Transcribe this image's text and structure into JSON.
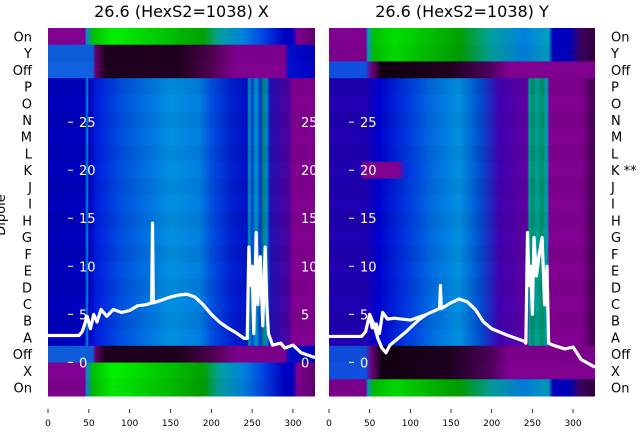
{
  "figure": {
    "ylabel": "Dipole"
  },
  "profiles": {
    "on_L": [
      [
        0,
        "#800090"
      ],
      [
        45,
        "#800090"
      ],
      [
        47,
        "#1080e0"
      ],
      [
        55,
        "#00c000"
      ],
      [
        80,
        "#00f000"
      ],
      [
        150,
        "#00c000"
      ],
      [
        190,
        "#00a000"
      ],
      [
        210,
        "#00a0a0"
      ],
      [
        240,
        "#0080e0"
      ],
      [
        265,
        "#0040e0"
      ],
      [
        290,
        "#0000c0"
      ],
      [
        300,
        "#0000c0"
      ],
      [
        305,
        "#800090"
      ],
      [
        327,
        "#600070"
      ]
    ],
    "dark_L": [
      [
        0,
        "#1060e0"
      ],
      [
        55,
        "#1060e0"
      ],
      [
        58,
        "#700070"
      ],
      [
        70,
        "#200020"
      ],
      [
        160,
        "#200020"
      ],
      [
        200,
        "#500050"
      ],
      [
        230,
        "#800090"
      ],
      [
        290,
        "#800090"
      ],
      [
        295,
        "#0010d0"
      ],
      [
        327,
        "#0000c0"
      ]
    ],
    "dip_L": [
      [
        0,
        "#0000b8"
      ],
      [
        45,
        "#0000c0"
      ],
      [
        48,
        "#0090e0"
      ],
      [
        50,
        "#0000c0"
      ],
      [
        60,
        "#0020e0"
      ],
      [
        90,
        "#0050e0"
      ],
      [
        120,
        "#0070e0"
      ],
      [
        150,
        "#0090e0"
      ],
      [
        185,
        "#0080e0"
      ],
      [
        200,
        "#0050e0"
      ],
      [
        225,
        "#0020d0"
      ],
      [
        244,
        "#0010c8"
      ],
      [
        246,
        "#00a0a0"
      ],
      [
        250,
        "#0040e0"
      ],
      [
        255,
        "#00a0c0"
      ],
      [
        260,
        "#0030e0"
      ],
      [
        264,
        "#009060"
      ],
      [
        268,
        "#0080e0"
      ],
      [
        272,
        "#2010b0"
      ],
      [
        295,
        "#5000a0"
      ],
      [
        300,
        "#800090"
      ],
      [
        327,
        "#800090"
      ]
    ],
    "on_R": [
      [
        0,
        "#800090"
      ],
      [
        45,
        "#800090"
      ],
      [
        48,
        "#00a0c0"
      ],
      [
        55,
        "#00c000"
      ],
      [
        80,
        "#00e000"
      ],
      [
        160,
        "#00a000"
      ],
      [
        200,
        "#00a0a0"
      ],
      [
        240,
        "#0080e0"
      ],
      [
        270,
        "#00a0c0"
      ],
      [
        275,
        "#0000c0"
      ],
      [
        295,
        "#0000c0"
      ],
      [
        310,
        "#400060"
      ],
      [
        327,
        "#300040"
      ]
    ],
    "dark_R": [
      [
        0,
        "#1050e0"
      ],
      [
        45,
        "#1050e0"
      ],
      [
        52,
        "#700080"
      ],
      [
        65,
        "#100010"
      ],
      [
        150,
        "#200020"
      ],
      [
        200,
        "#500060"
      ],
      [
        220,
        "#800090"
      ],
      [
        327,
        "#800090"
      ]
    ],
    "dip_R": [
      [
        0,
        "#2000b0"
      ],
      [
        45,
        "#2000b0"
      ],
      [
        60,
        "#0000d0"
      ],
      [
        100,
        "#0040e0"
      ],
      [
        130,
        "#0070e0"
      ],
      [
        160,
        "#0090e0"
      ],
      [
        185,
        "#0050d0"
      ],
      [
        210,
        "#4000b0"
      ],
      [
        244,
        "#6000a0"
      ],
      [
        246,
        "#00a0a0"
      ],
      [
        250,
        "#009060"
      ],
      [
        255,
        "#00a0a0"
      ],
      [
        262,
        "#009060"
      ],
      [
        268,
        "#00a0c0"
      ],
      [
        271,
        "#800090"
      ],
      [
        310,
        "#800090"
      ],
      [
        327,
        "#400050"
      ]
    ],
    "dipK_R": [
      [
        0,
        "#2000b0"
      ],
      [
        40,
        "#2000b0"
      ],
      [
        42,
        "#800090"
      ],
      [
        85,
        "#800090"
      ],
      [
        95,
        "#0030e0"
      ],
      [
        130,
        "#0070e0"
      ],
      [
        160,
        "#0090e0"
      ],
      [
        185,
        "#0050d0"
      ],
      [
        210,
        "#4000b0"
      ],
      [
        244,
        "#6000a0"
      ],
      [
        246,
        "#00a0a0"
      ],
      [
        250,
        "#009060"
      ],
      [
        255,
        "#00a0a0"
      ],
      [
        262,
        "#009060"
      ],
      [
        268,
        "#00a0c0"
      ],
      [
        271,
        "#800090"
      ],
      [
        310,
        "#800090"
      ],
      [
        327,
        "#400050"
      ]
    ]
  },
  "chart_data": [
    {
      "type": "heatmap",
      "title": "26.6 (HexS2=1038) X",
      "row_labels": [
        "On",
        "Y",
        "Off",
        "P",
        "O",
        "N",
        "M",
        "L",
        "K",
        "J",
        "I",
        "H",
        "G",
        "F",
        "E",
        "D",
        "C",
        "B",
        "A",
        "Off",
        "X",
        "On"
      ],
      "row_profiles": [
        "on_L",
        "dark_L",
        "dark_L",
        "dip_L",
        "dip_L",
        "dip_L",
        "dip_L",
        "dip_L",
        "dip_L",
        "dip_L",
        "dip_L",
        "dip_L",
        "dip_L",
        "dip_L",
        "dip_L",
        "dip_L",
        "dip_L",
        "dip_L",
        "dip_L",
        "dark_L",
        "on_L",
        "on_L"
      ],
      "xlim": [
        0,
        327
      ],
      "xticks": [
        0,
        50,
        100,
        150,
        200,
        250,
        300
      ],
      "overlay_ylim": [
        -3.5,
        34.8
      ],
      "overlay_yticks": [
        0,
        5,
        10,
        15,
        20,
        25
      ],
      "traces": [
        [
          [
            0,
            2.8
          ],
          [
            38,
            2.8
          ],
          [
            42,
            3.2
          ],
          [
            48,
            4.8
          ],
          [
            52,
            3.5
          ],
          [
            56,
            5.0
          ],
          [
            60,
            4.2
          ],
          [
            65,
            5.5
          ],
          [
            72,
            4.8
          ],
          [
            80,
            5.5
          ],
          [
            90,
            5.2
          ],
          [
            100,
            5.4
          ],
          [
            110,
            5.9
          ],
          [
            120,
            6.0
          ],
          [
            127,
            6.2
          ],
          [
            128,
            14.5
          ],
          [
            129,
            6.2
          ],
          [
            140,
            6.5
          ],
          [
            150,
            6.8
          ],
          [
            160,
            7.0
          ],
          [
            170,
            7.1
          ],
          [
            180,
            6.8
          ],
          [
            190,
            6.0
          ],
          [
            200,
            5.0
          ],
          [
            210,
            4.2
          ],
          [
            220,
            3.6
          ],
          [
            230,
            3.1
          ],
          [
            240,
            2.5
          ],
          [
            244,
            2.5
          ],
          [
            246,
            12
          ],
          [
            248,
            8
          ],
          [
            250,
            10
          ],
          [
            252,
            3
          ],
          [
            255,
            13.5
          ],
          [
            257,
            6
          ],
          [
            260,
            11
          ],
          [
            263,
            3.8
          ],
          [
            266,
            12
          ],
          [
            268,
            6
          ],
          [
            270,
            3
          ],
          [
            275,
            1.8
          ],
          [
            285,
            2.0
          ],
          [
            290,
            1.5
          ],
          [
            300,
            1.8
          ],
          [
            310,
            1.0
          ],
          [
            327,
            0.5
          ]
        ]
      ]
    },
    {
      "type": "heatmap",
      "title": "26.6 (HexS2=1038) Y",
      "row_labels": [
        "On",
        "Y",
        "Off",
        "P",
        "O",
        "N",
        "M",
        "L",
        "K **",
        "J",
        "I",
        "H",
        "G",
        "F",
        "E",
        "D",
        "C",
        "B",
        "A",
        "Off",
        "X",
        "On"
      ],
      "row_profiles": [
        "on_R",
        "on_R",
        "dark_R",
        "dip_R",
        "dip_R",
        "dip_R",
        "dip_R",
        "dip_R",
        "dipK_R",
        "dip_R",
        "dip_R",
        "dip_R",
        "dip_R",
        "dip_R",
        "dip_R",
        "dip_R",
        "dip_R",
        "dip_R",
        "dip_R",
        "dark_R",
        "dark_R",
        "on_R"
      ],
      "xlim": [
        0,
        327
      ],
      "xticks": [
        0,
        50,
        100,
        150,
        200,
        250,
        300
      ],
      "overlay_ylim": [
        -3.5,
        34.8
      ],
      "overlay_yticks": [
        0,
        5,
        10,
        15,
        20,
        25
      ],
      "traces": [
        [
          [
            0,
            2.7
          ],
          [
            40,
            2.7
          ],
          [
            45,
            3.2
          ],
          [
            50,
            5.0
          ],
          [
            53,
            3.6
          ],
          [
            58,
            4.0
          ],
          [
            62,
            3.0
          ],
          [
            66,
            5.2
          ],
          [
            72,
            4.5
          ],
          [
            80,
            4.6
          ],
          [
            100,
            4.4
          ],
          [
            120,
            5.0
          ],
          [
            136,
            5.6
          ],
          [
            137,
            8.0
          ],
          [
            138,
            5.6
          ],
          [
            150,
            6.2
          ],
          [
            160,
            6.6
          ],
          [
            170,
            6.3
          ],
          [
            180,
            5.5
          ],
          [
            190,
            4.2
          ],
          [
            200,
            3.5
          ],
          [
            220,
            2.8
          ],
          [
            240,
            2.2
          ],
          [
            242,
            2
          ],
          [
            244,
            13.5
          ],
          [
            246,
            8
          ],
          [
            248,
            10
          ],
          [
            250,
            5
          ],
          [
            252,
            13
          ],
          [
            255,
            9
          ],
          [
            258,
            11
          ],
          [
            262,
            13
          ],
          [
            265,
            6
          ],
          [
            268,
            10
          ],
          [
            270,
            2
          ],
          [
            275,
            1.8
          ],
          [
            290,
            1.4
          ],
          [
            300,
            1.6
          ],
          [
            310,
            0.3
          ],
          [
            327,
            -0.5
          ]
        ],
        [
          [
            50,
            5.0
          ],
          [
            55,
            4.0
          ],
          [
            60,
            2.5
          ],
          [
            65,
            1.5
          ],
          [
            70,
            1.0
          ],
          [
            75,
            1.8
          ],
          [
            85,
            2.5
          ],
          [
            95,
            3.2
          ],
          [
            110,
            4.4
          ],
          [
            120,
            5.0
          ]
        ]
      ]
    }
  ]
}
